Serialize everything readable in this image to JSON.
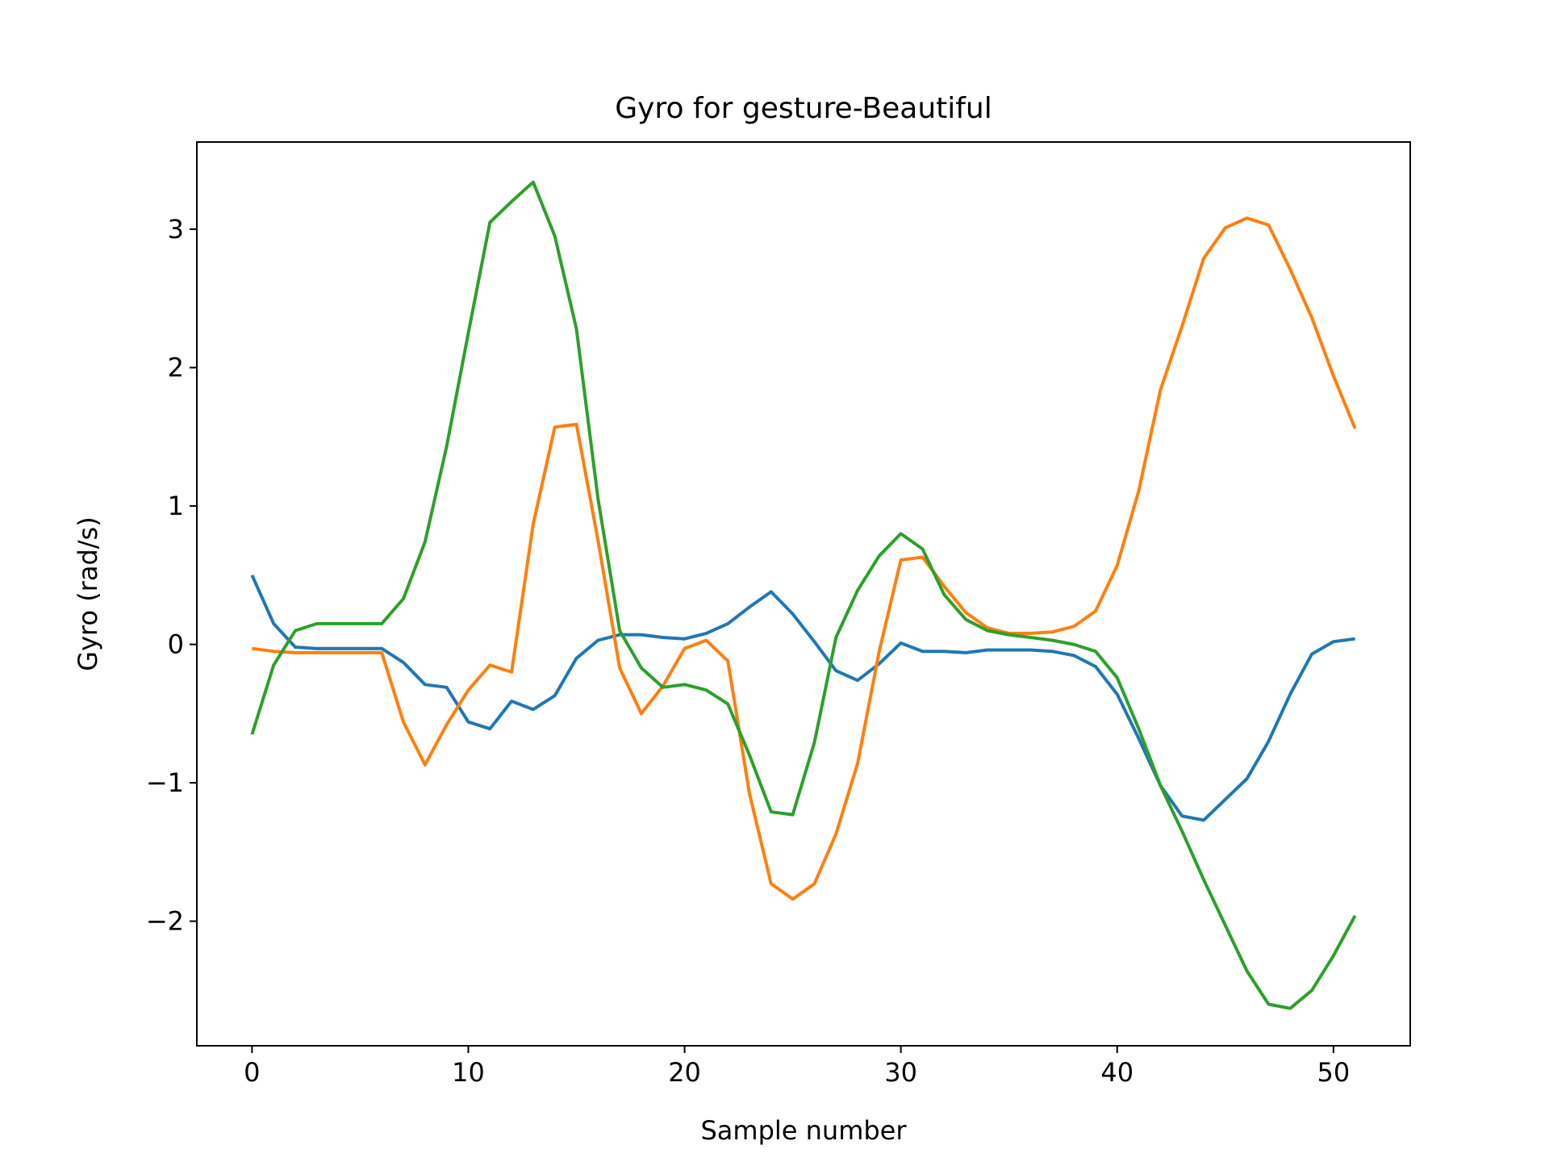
{
  "chart_data": {
    "type": "line",
    "title": "Gyro for gesture-Beautiful",
    "xlabel": "Sample number",
    "ylabel": "Gyro  (rad/s)",
    "xlim": [
      -2.55,
      53.55
    ],
    "ylim": [
      -2.9,
      3.63
    ],
    "xticks": [
      0,
      10,
      20,
      30,
      40,
      50
    ],
    "yticks": [
      -2,
      -1,
      0,
      1,
      2,
      3
    ],
    "ytick_labels": [
      "−2",
      "−1",
      "0",
      "1",
      "2",
      "3"
    ],
    "grid": false,
    "legend": "none",
    "x": [
      0,
      1,
      2,
      3,
      4,
      5,
      6,
      7,
      8,
      9,
      10,
      11,
      12,
      13,
      14,
      15,
      16,
      17,
      18,
      19,
      20,
      21,
      22,
      23,
      24,
      25,
      26,
      27,
      28,
      29,
      30,
      31,
      32,
      33,
      34,
      35,
      36,
      37,
      38,
      39,
      40,
      41,
      42,
      43,
      44,
      45,
      46,
      47,
      48,
      49,
      50,
      51
    ],
    "series": [
      {
        "color": "#1f77b4",
        "values": [
          0.5,
          0.15,
          -0.02,
          -0.03,
          -0.03,
          -0.03,
          -0.03,
          -0.13,
          -0.29,
          -0.31,
          -0.56,
          -0.61,
          -0.41,
          -0.47,
          -0.37,
          -0.1,
          0.03,
          0.07,
          0.07,
          0.05,
          0.04,
          0.08,
          0.15,
          0.27,
          0.38,
          0.22,
          0.02,
          -0.19,
          -0.26,
          -0.14,
          0.01,
          -0.05,
          -0.05,
          -0.06,
          -0.04,
          -0.04,
          -0.04,
          -0.05,
          -0.08,
          -0.16,
          -0.36,
          -0.68,
          -1.02,
          -1.24,
          -1.27,
          -1.12,
          -0.97,
          -0.7,
          -0.36,
          -0.07,
          0.02,
          0.04
        ]
      },
      {
        "color": "#ff7f0e",
        "values": [
          -0.03,
          -0.05,
          -0.06,
          -0.06,
          -0.06,
          -0.06,
          -0.06,
          -0.56,
          -0.87,
          -0.58,
          -0.33,
          -0.15,
          -0.2,
          0.87,
          1.57,
          1.59,
          0.75,
          -0.17,
          -0.5,
          -0.3,
          -0.03,
          0.03,
          -0.12,
          -1.08,
          -1.73,
          -1.84,
          -1.73,
          -1.37,
          -0.86,
          -0.05,
          0.61,
          0.63,
          0.42,
          0.23,
          0.12,
          0.08,
          0.08,
          0.09,
          0.13,
          0.24,
          0.57,
          1.11,
          1.84,
          2.3,
          2.79,
          3.01,
          3.08,
          3.03,
          2.71,
          2.36,
          1.94,
          1.56
        ]
      },
      {
        "color": "#2ca02c",
        "values": [
          -0.65,
          -0.15,
          0.1,
          0.15,
          0.15,
          0.15,
          0.15,
          0.33,
          0.74,
          1.43,
          2.25,
          3.05,
          3.2,
          3.34,
          2.95,
          2.28,
          1.05,
          0.1,
          -0.17,
          -0.31,
          -0.29,
          -0.33,
          -0.43,
          -0.8,
          -1.21,
          -1.23,
          -0.71,
          0.05,
          0.39,
          0.64,
          0.8,
          0.69,
          0.36,
          0.18,
          0.1,
          0.07,
          0.05,
          0.03,
          0.0,
          -0.05,
          -0.24,
          -0.61,
          -1.02,
          -1.35,
          -1.7,
          -2.03,
          -2.36,
          -2.6,
          -2.63,
          -2.5,
          -2.25,
          -1.96
        ]
      }
    ]
  }
}
